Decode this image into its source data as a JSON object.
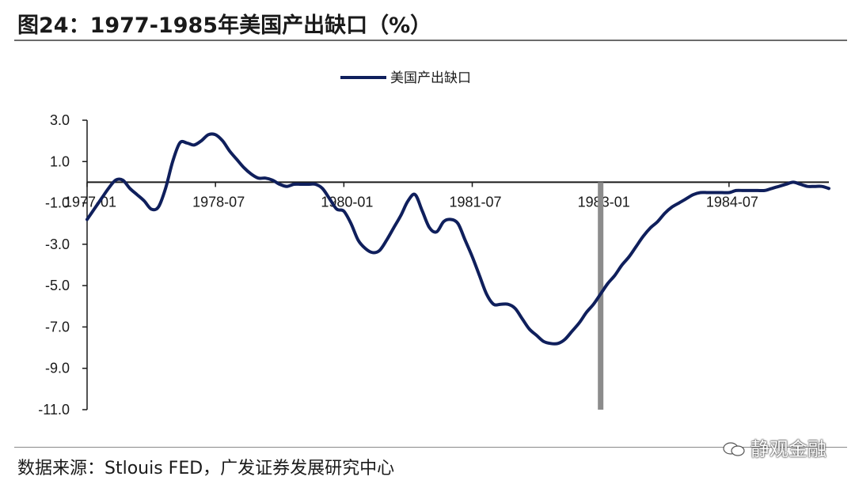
{
  "header": {
    "title": "图24：1977-1985年美国产出缺口（%）"
  },
  "footer": {
    "source": "数据来源：Stlouis FED，广发证券发展研究中心",
    "watermark": "静观金融"
  },
  "colors": {
    "series": "#0f1f5c",
    "marker_bar": "#8c8c8c",
    "axis": "#1a1a1a"
  },
  "chart_data": {
    "type": "line",
    "title": "",
    "xlabel": "",
    "ylabel": "",
    "ylim": [
      -11.0,
      3.0
    ],
    "yticks": [
      "3.0",
      "1.0",
      "-1.0",
      "-3.0",
      "-5.0",
      "-7.0",
      "-9.0",
      "-11.0"
    ],
    "ytick_values": [
      3.0,
      1.0,
      -1.0,
      -3.0,
      -5.0,
      -7.0,
      -9.0,
      -11.0
    ],
    "xticks": [
      "1977-01",
      "1978-07",
      "1980-01",
      "1981-07",
      "1983-01",
      "1984-07"
    ],
    "xtick_index": [
      0,
      18,
      36,
      54,
      72,
      90
    ],
    "grid": false,
    "legend": "top-center",
    "vertical_marker": {
      "x": "1983-01",
      "ymin": -11.0,
      "ymax": 0.0
    },
    "series": [
      {
        "name": "美国产出缺口",
        "x": [
          "1977-01",
          "1977-02",
          "1977-03",
          "1977-04",
          "1977-05",
          "1977-06",
          "1977-07",
          "1977-08",
          "1977-09",
          "1977-10",
          "1977-11",
          "1977-12",
          "1978-01",
          "1978-02",
          "1978-03",
          "1978-04",
          "1978-05",
          "1978-06",
          "1978-07",
          "1978-08",
          "1978-09",
          "1978-10",
          "1978-11",
          "1978-12",
          "1979-01",
          "1979-02",
          "1979-03",
          "1979-04",
          "1979-05",
          "1979-06",
          "1979-07",
          "1979-08",
          "1979-09",
          "1979-10",
          "1979-11",
          "1979-12",
          "1980-01",
          "1980-02",
          "1980-03",
          "1980-04",
          "1980-05",
          "1980-06",
          "1980-07",
          "1980-08",
          "1980-09",
          "1980-10",
          "1980-11",
          "1980-12",
          "1981-01",
          "1981-02",
          "1981-03",
          "1981-04",
          "1981-05",
          "1981-06",
          "1981-07",
          "1981-08",
          "1981-09",
          "1981-10",
          "1981-11",
          "1981-12",
          "1982-01",
          "1982-02",
          "1982-03",
          "1982-04",
          "1982-05",
          "1982-06",
          "1982-07",
          "1982-08",
          "1982-09",
          "1982-10",
          "1982-11",
          "1982-12",
          "1983-01",
          "1983-02",
          "1983-03",
          "1983-04",
          "1983-05",
          "1983-06",
          "1983-07",
          "1983-08",
          "1983-09",
          "1983-10",
          "1983-11",
          "1983-12",
          "1984-01",
          "1984-02",
          "1984-03",
          "1984-04",
          "1984-05",
          "1984-06",
          "1984-07",
          "1984-08",
          "1984-09",
          "1984-10",
          "1984-11",
          "1984-12",
          "1985-01",
          "1985-02",
          "1985-03",
          "1985-04",
          "1985-05",
          "1985-06",
          "1985-07",
          "1985-08",
          "1985-09"
        ],
        "values": [
          -1.8,
          -1.3,
          -0.8,
          -0.3,
          0.1,
          0.1,
          -0.3,
          -0.6,
          -0.9,
          -1.3,
          -1.2,
          -0.3,
          1.0,
          1.9,
          1.9,
          1.8,
          2.0,
          2.3,
          2.3,
          2.0,
          1.5,
          1.1,
          0.7,
          0.4,
          0.2,
          0.2,
          0.1,
          -0.1,
          -0.2,
          -0.1,
          -0.1,
          -0.1,
          -0.1,
          -0.3,
          -0.8,
          -1.3,
          -1.4,
          -2.0,
          -2.8,
          -3.2,
          -3.4,
          -3.3,
          -2.8,
          -2.2,
          -1.6,
          -0.9,
          -0.6,
          -1.4,
          -2.2,
          -2.4,
          -1.9,
          -1.8,
          -2.0,
          -2.8,
          -3.6,
          -4.5,
          -5.4,
          -5.9,
          -5.9,
          -5.9,
          -6.1,
          -6.6,
          -7.1,
          -7.4,
          -7.7,
          -7.8,
          -7.8,
          -7.6,
          -7.2,
          -6.8,
          -6.3,
          -5.9,
          -5.4,
          -4.9,
          -4.5,
          -4.0,
          -3.6,
          -3.1,
          -2.6,
          -2.2,
          -1.9,
          -1.5,
          -1.2,
          -1.0,
          -0.8,
          -0.6,
          -0.5,
          -0.5,
          -0.5,
          -0.5,
          -0.5,
          -0.4,
          -0.4,
          -0.4,
          -0.4,
          -0.4,
          -0.3,
          -0.2,
          -0.1,
          0.0,
          -0.1,
          -0.2,
          -0.2,
          -0.2,
          -0.3
        ]
      }
    ]
  }
}
